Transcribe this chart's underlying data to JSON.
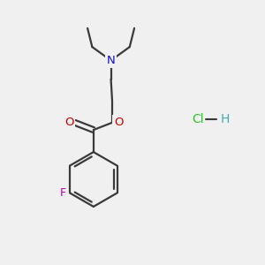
{
  "background_color": "#f0f0f0",
  "bond_color": "#3a3a3a",
  "atom_colors": {
    "N": "#1010cc",
    "O": "#cc0000",
    "F": "#bb00bb",
    "Cl": "#22cc22",
    "H": "#44aaaa"
  },
  "figsize": [
    3.0,
    3.0
  ],
  "dpi": 100,
  "lw": 1.6
}
